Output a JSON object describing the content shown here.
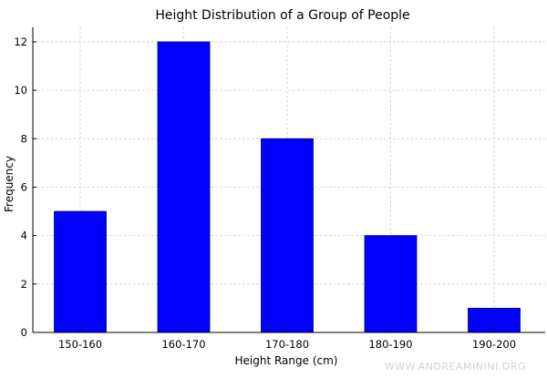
{
  "chart_data": {
    "type": "bar",
    "title": "Height Distribution of a Group of People",
    "xlabel": "Height Range (cm)",
    "ylabel": "Frequency",
    "categories": [
      "150-160",
      "160-170",
      "170-180",
      "180-190",
      "190-200"
    ],
    "values": [
      5,
      12,
      8,
      4,
      1
    ],
    "ylim": [
      0,
      12.6
    ],
    "yticks": [
      0,
      2,
      4,
      6,
      8,
      10,
      12
    ],
    "bar_color": "#0000ff",
    "grid": true
  },
  "watermark": "WWW.ANDREAMININI.ORG"
}
